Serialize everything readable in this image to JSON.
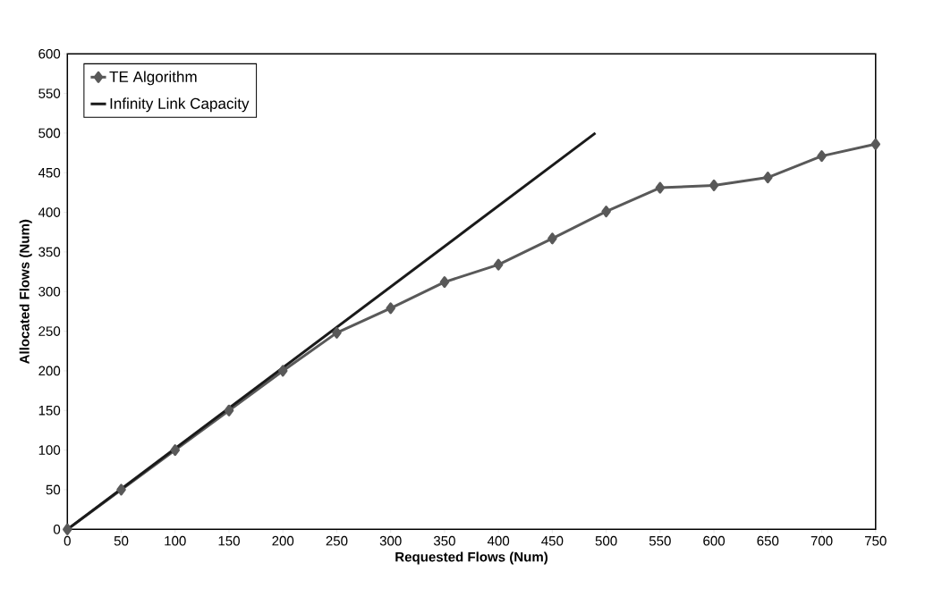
{
  "chart_data": {
    "type": "line",
    "xlabel": "Requested Flows (Num)",
    "ylabel": "Allocated Flows (Num)",
    "x": [
      0,
      50,
      100,
      150,
      200,
      250,
      300,
      350,
      400,
      450,
      500,
      550,
      600,
      650,
      700,
      750
    ],
    "series": [
      {
        "name": "TE Algorithm",
        "color": "#595959",
        "marker": "diamond",
        "values": [
          0,
          50,
          100,
          150,
          200,
          248,
          279,
          312,
          334,
          367,
          401,
          431,
          434,
          444,
          471,
          486
        ]
      },
      {
        "name": "Infinity Link Capacity",
        "color": "#1a1a1a",
        "marker": "none",
        "x": [
          0,
          490
        ],
        "values": [
          0,
          500
        ]
      }
    ],
    "xlim": [
      0,
      750
    ],
    "ylim": [
      0,
      600
    ],
    "xticks": [
      0,
      50,
      100,
      150,
      200,
      250,
      300,
      350,
      400,
      450,
      500,
      550,
      600,
      650,
      700,
      750
    ],
    "yticks": [
      0,
      50,
      100,
      150,
      200,
      250,
      300,
      350,
      400,
      450,
      500,
      550,
      600
    ],
    "legend": "top left",
    "grid": false
  }
}
